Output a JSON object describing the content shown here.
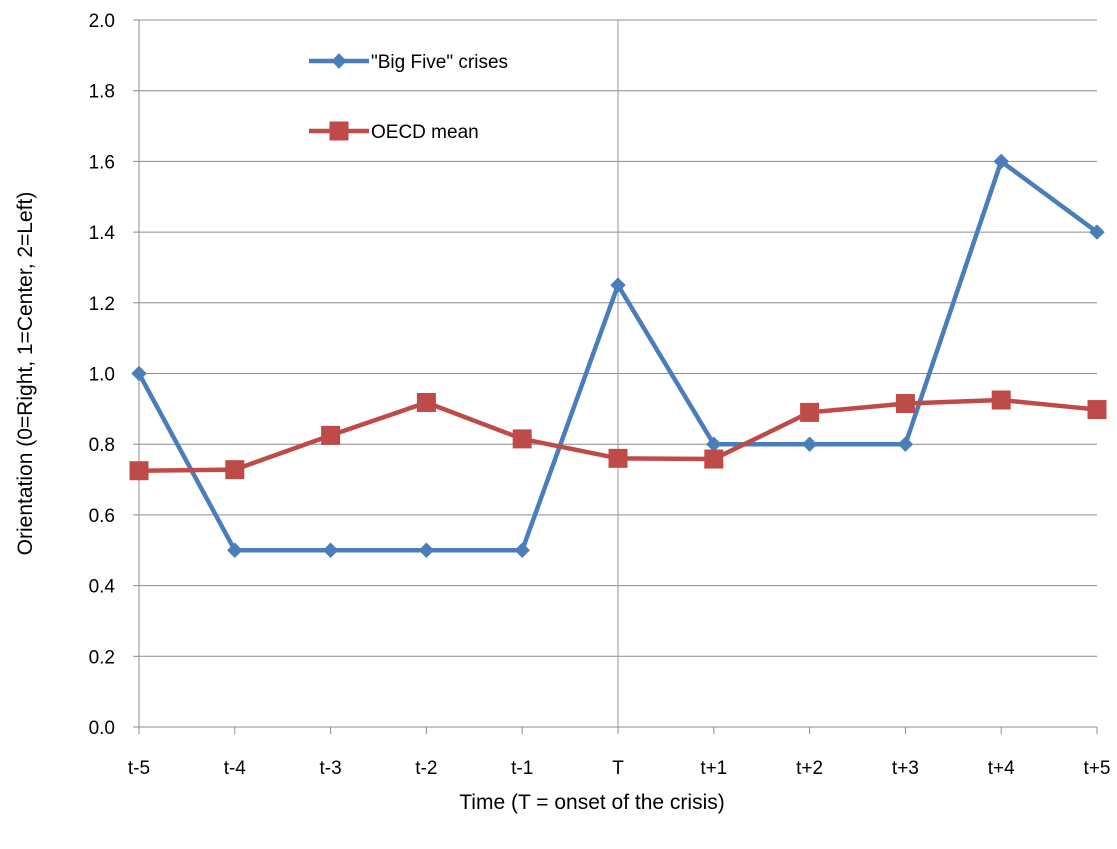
{
  "chart_data": {
    "type": "line",
    "title": "",
    "xlabel": "Time (T = onset of the crisis)",
    "ylabel": "Orientation (0=Right, 1=Center, 2=Left)",
    "categories": [
      "t-5",
      "t-4",
      "t-3",
      "t-2",
      "t-1",
      "T",
      "t+1",
      "t+2",
      "t+3",
      "t+4",
      "t+5"
    ],
    "ylim": [
      0,
      2
    ],
    "y_ticks": [
      "0.0",
      "0.2",
      "0.4",
      "0.6",
      "0.8",
      "1.0",
      "1.2",
      "1.4",
      "1.6",
      "1.8",
      "2.0"
    ],
    "grid": "horizontal",
    "reference_line_at": "T",
    "legend_position": "top-left inside plot",
    "series": [
      {
        "name": "\"Big Five\" crises",
        "color": "#4A7EBB",
        "marker": "diamond",
        "values": [
          1.0,
          0.5,
          0.5,
          0.5,
          0.5,
          1.25,
          0.8,
          0.8,
          0.8,
          1.6,
          1.4
        ]
      },
      {
        "name": "OECD mean",
        "color": "#BE4B48",
        "marker": "square",
        "values": [
          0.725,
          0.728,
          0.825,
          0.918,
          0.815,
          0.76,
          0.758,
          0.89,
          0.915,
          0.925,
          0.898
        ]
      }
    ]
  }
}
